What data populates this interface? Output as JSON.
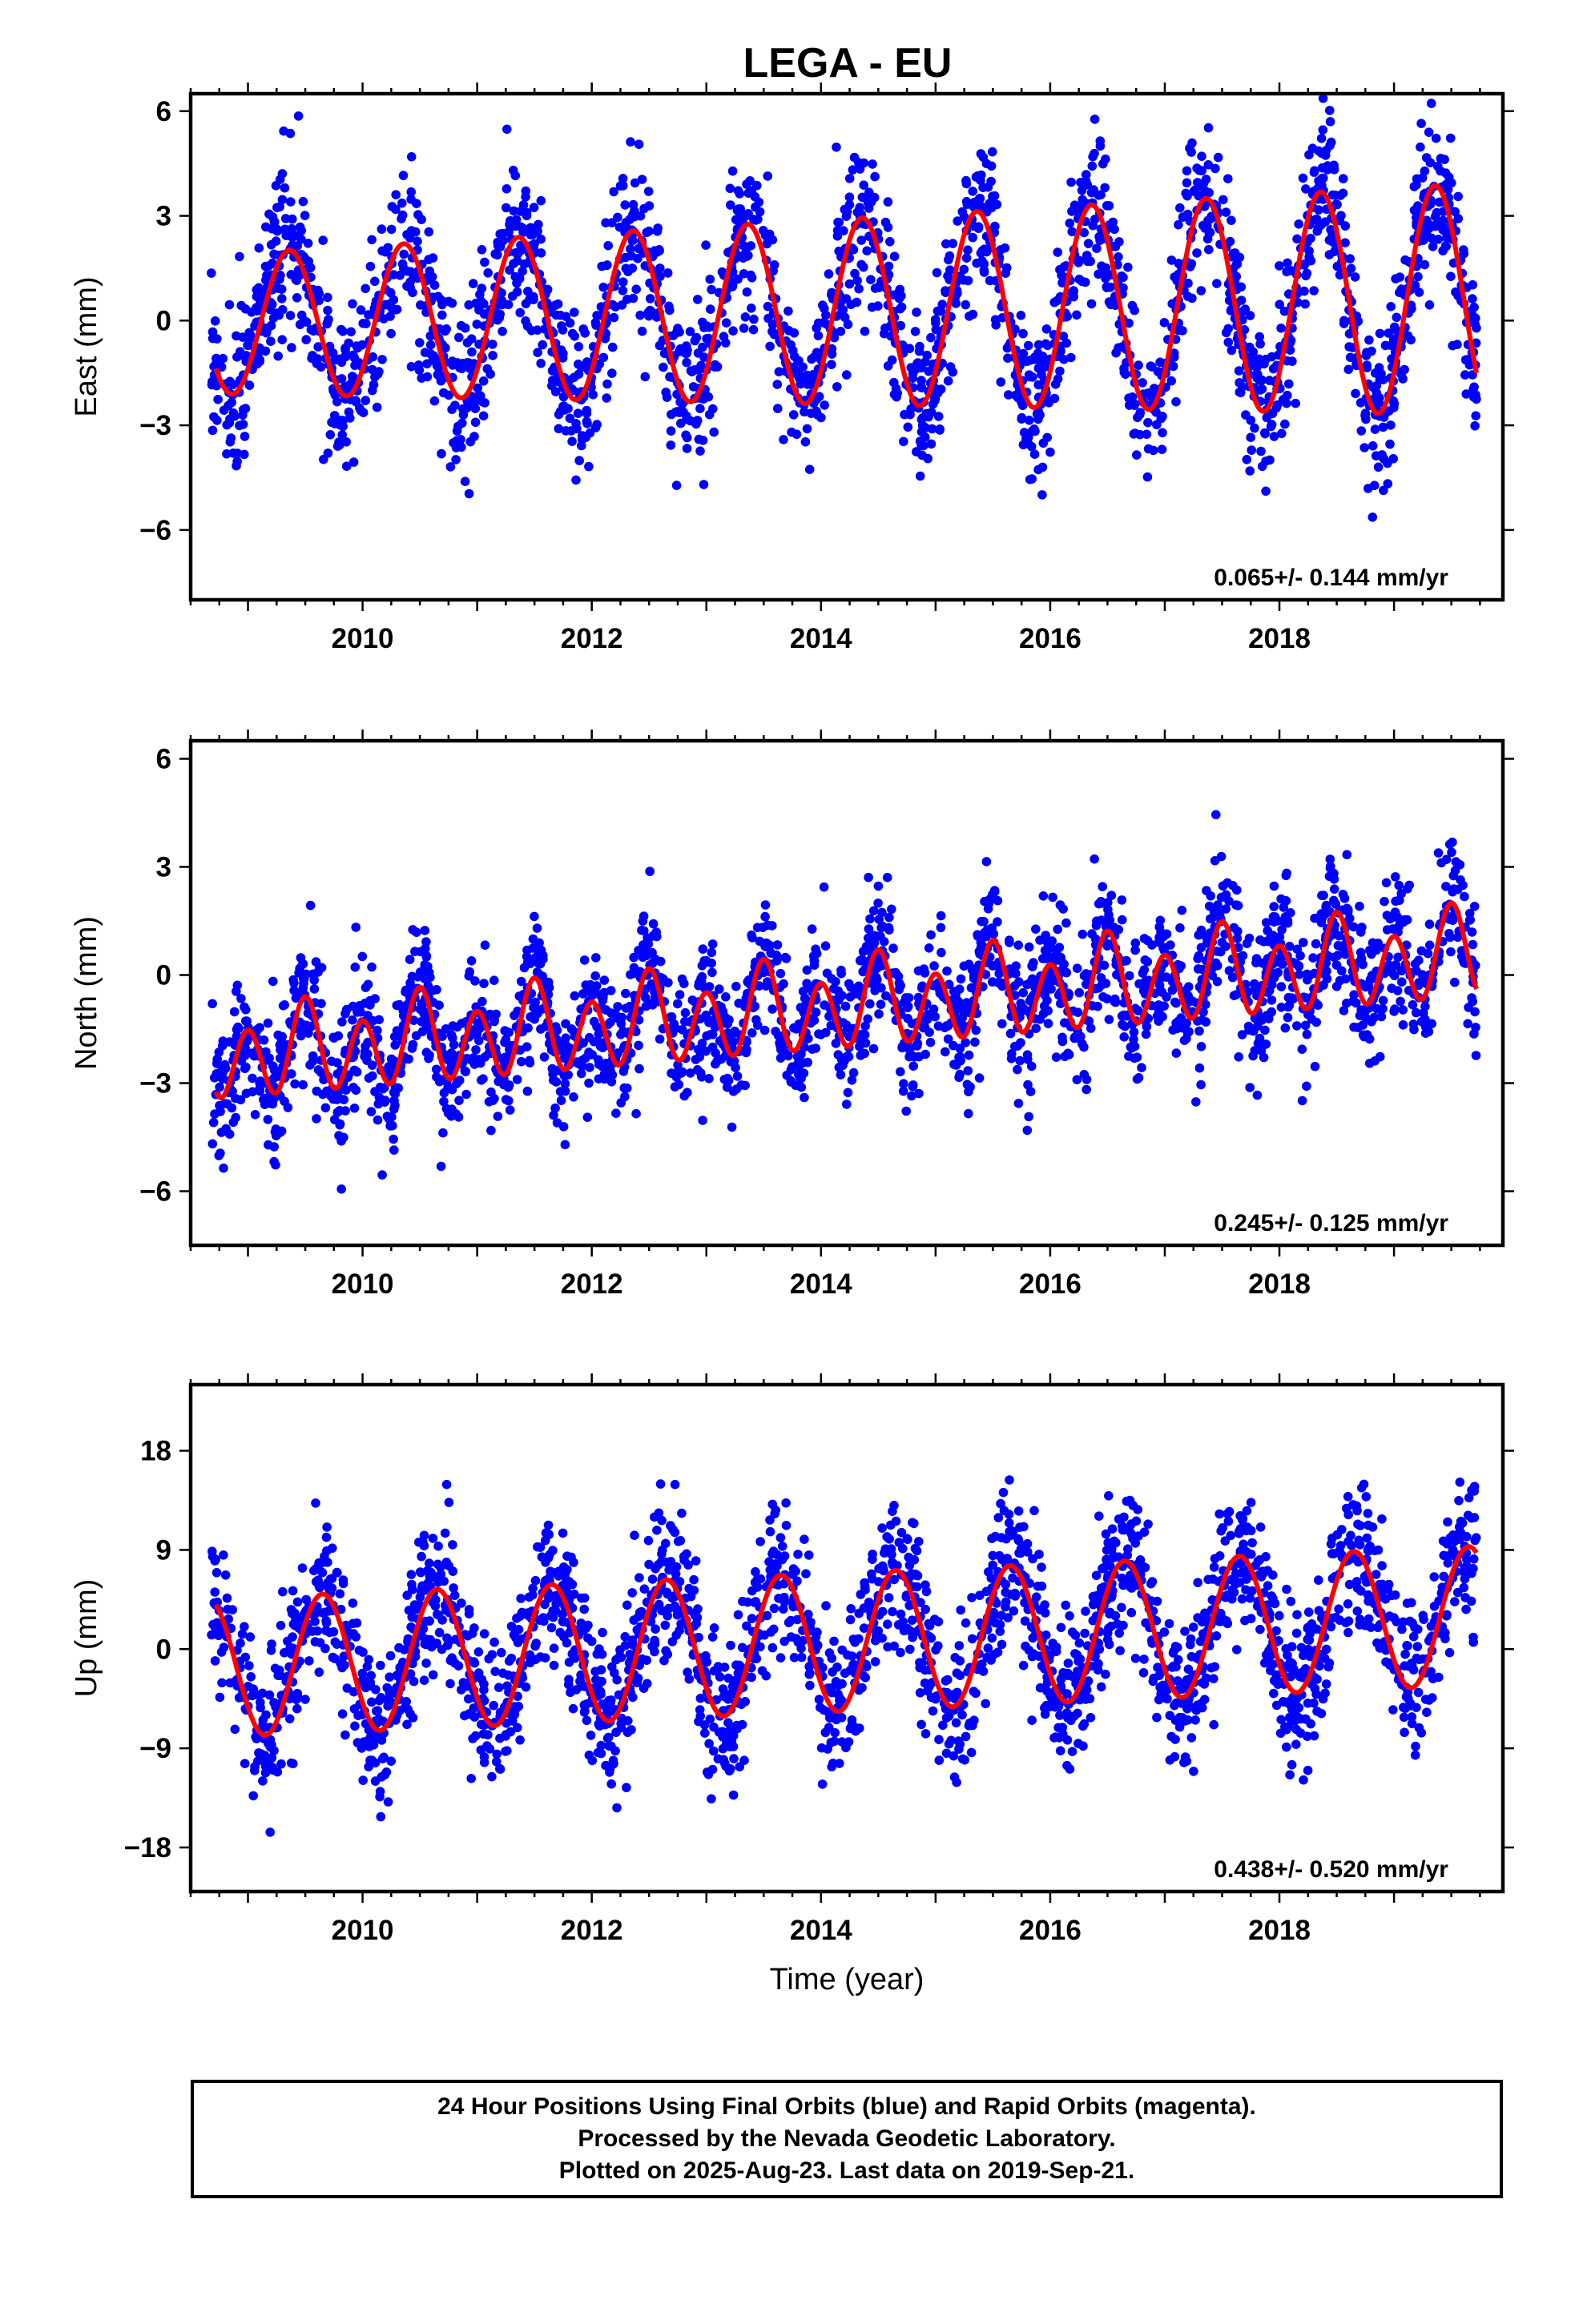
{
  "figure": {
    "title": "LEGA - EU",
    "caption": [
      "24 Hour Positions Using Final Orbits (blue) and Rapid Orbits (magenta).",
      "Processed by the Nevada Geodetic Laboratory.",
      "Plotted on 2025-Aug-23. Last data on 2019-Sep-21."
    ]
  },
  "colors": {
    "points": "#0000ff",
    "model": "#ff0000",
    "frame": "#000000"
  },
  "chart_data": [
    {
      "type": "scatter",
      "component": "east",
      "ylabel": "East (mm)",
      "xlabel": "",
      "xlim": [
        2008.5,
        2019.95
      ],
      "ylim": [
        -8,
        6.5
      ],
      "yticks": [
        6,
        3,
        0,
        -3,
        -6
      ],
      "ytick_labels": [
        "6",
        "3",
        "0",
        "−3",
        "−6"
      ],
      "xticks": [
        2010,
        2012,
        2014,
        2016,
        2018
      ],
      "xtick_labels": [
        "2010",
        "2012",
        "2014",
        "2016",
        "2018"
      ],
      "rate_label": "0.065+/- 0.144 mm/yr",
      "model": {
        "x_start": 2008.72,
        "x_end": 2019.72,
        "offset": -0.1,
        "trend": 0.065,
        "annual_amp": 2.0,
        "annual_peak": 0.36,
        "semiannual_amp": 0.0,
        "semiannual_peak": 0.0,
        "amp_growth": 0.06
      },
      "scatter": {
        "x_start": 2008.68,
        "x_end": 2019.72,
        "count": 2400,
        "sigma": 1.15,
        "seed": 11
      }
    },
    {
      "type": "scatter",
      "component": "north",
      "ylabel": "North (mm)",
      "xlabel": "",
      "xlim": [
        2008.5,
        2019.95
      ],
      "ylim": [
        -7.5,
        6.5
      ],
      "yticks": [
        6,
        3,
        0,
        -3,
        -6
      ],
      "ytick_labels": [
        "6",
        "3",
        "0",
        "−3",
        "−6"
      ],
      "xticks": [
        2010,
        2012,
        2014,
        2016,
        2018
      ],
      "xtick_labels": [
        "2010",
        "2012",
        "2014",
        "2016",
        "2018"
      ],
      "rate_label": "0.245+/- 0.125 mm/yr",
      "model": {
        "x_start": 2008.72,
        "x_end": 2019.72,
        "offset": -2.3,
        "trend": 0.26,
        "annual_amp": 0.4,
        "annual_peak": 0.5,
        "semiannual_amp": 1.1,
        "semiannual_peak": 0.5,
        "amp_growth": 0.0
      },
      "scatter": {
        "x_start": 2008.68,
        "x_end": 2019.72,
        "count": 2400,
        "sigma": 0.95,
        "seed": 23
      }
    },
    {
      "type": "scatter",
      "component": "up",
      "ylabel": "Up (mm)",
      "xlabel": "Time (year)",
      "xlim": [
        2008.5,
        2019.95
      ],
      "ylim": [
        -22,
        24
      ],
      "yticks": [
        18,
        9,
        0,
        -9,
        -18
      ],
      "ytick_labels": [
        "18",
        "9",
        "0",
        "−9",
        "−18"
      ],
      "xticks": [
        2010,
        2012,
        2014,
        2016,
        2018
      ],
      "xtick_labels": [
        "2010",
        "2012",
        "2014",
        "2016",
        "2018"
      ],
      "rate_label": "0.438+/- 0.520 mm/yr",
      "model": {
        "x_start": 2008.72,
        "x_end": 2019.72,
        "offset": -1.7,
        "trend": 0.43,
        "annual_amp": 6.3,
        "annual_peak": 0.65,
        "semiannual_amp": 0.0,
        "semiannual_peak": 0.0,
        "amp_growth": 0.0
      },
      "scatter": {
        "x_start": 2008.68,
        "x_end": 2019.72,
        "count": 2400,
        "sigma": 3.4,
        "seed": 37
      }
    }
  ]
}
